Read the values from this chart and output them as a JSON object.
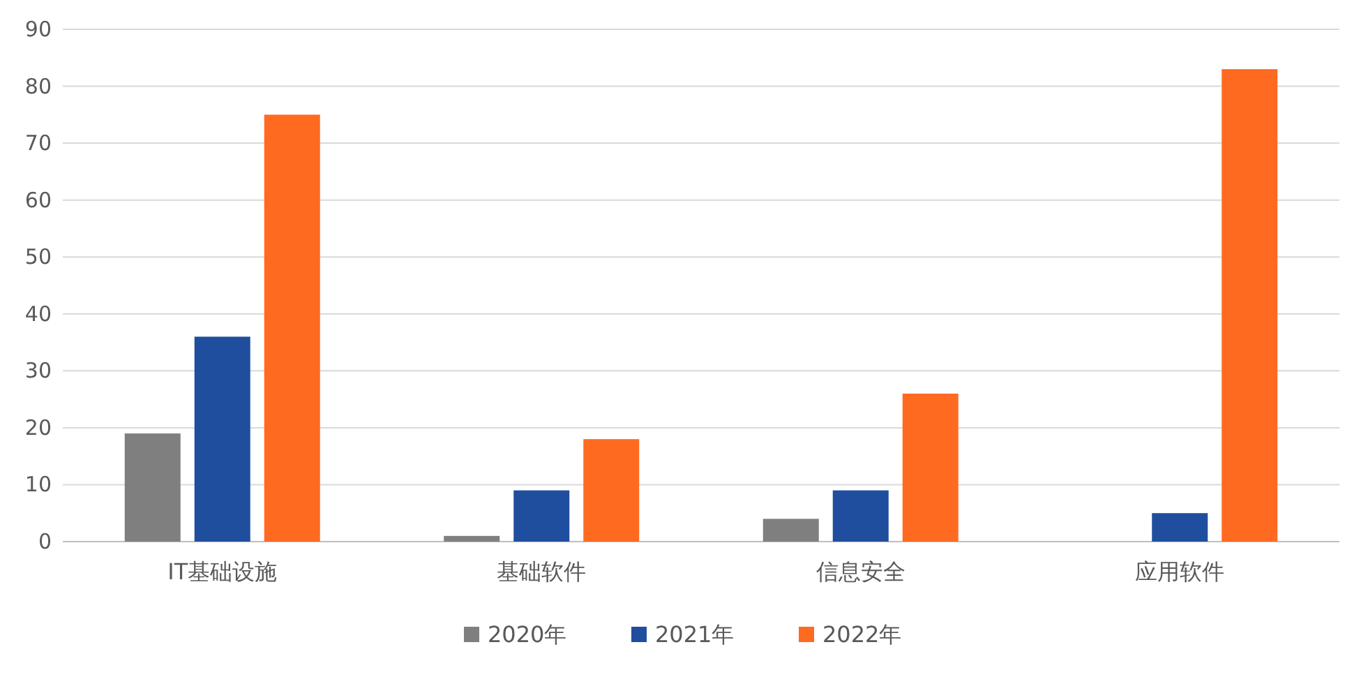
{
  "chart_data": {
    "type": "bar",
    "categories": [
      "IT基础设施",
      "基础软件",
      "信息安全",
      "应用软件"
    ],
    "series": [
      {
        "name": "2020年",
        "color": "#7f7f7f",
        "values": [
          19,
          1,
          4,
          0
        ]
      },
      {
        "name": "2021年",
        "color": "#1f4e9e",
        "values": [
          36,
          9,
          9,
          5
        ]
      },
      {
        "name": "2022年",
        "color": "#ff6a21",
        "values": [
          75,
          18,
          26,
          83
        ]
      }
    ],
    "ylim": [
      0,
      90
    ],
    "yticks": [
      0,
      10,
      20,
      30,
      40,
      50,
      60,
      70,
      80,
      90
    ],
    "grid": "y",
    "legend": "bottom"
  }
}
